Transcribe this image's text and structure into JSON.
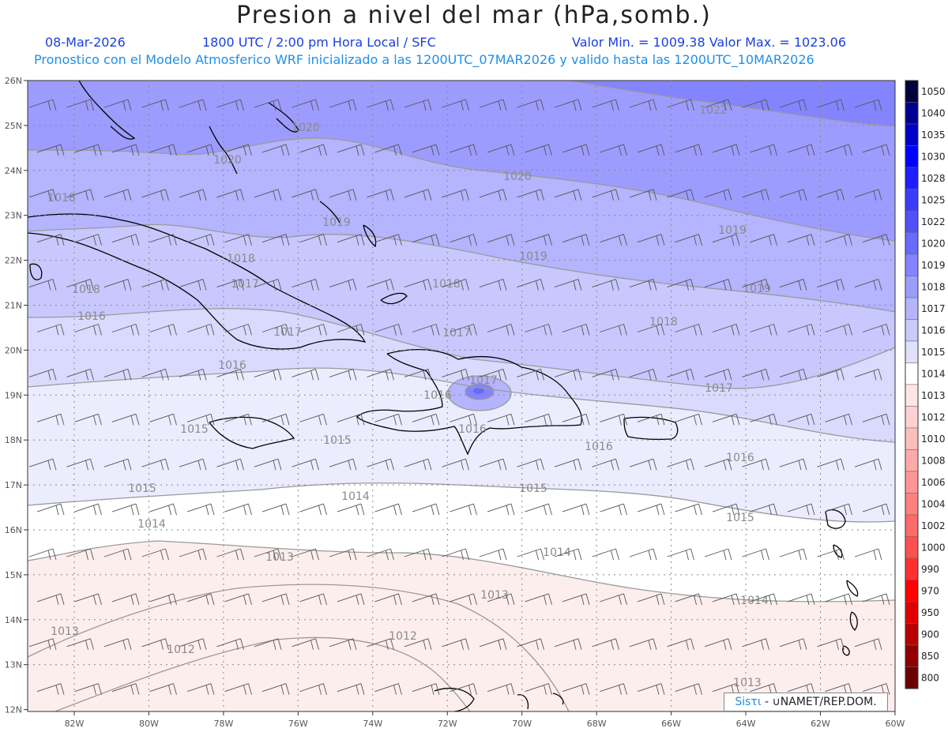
{
  "header": {
    "title": "Presion a nivel del mar (hPa,somb.)",
    "date": "08-Mar-2026",
    "time": "1800 UTC / 2:00 pm Hora Local / SFC",
    "min_max": "Valor Min. = 1009.38  Valor Max. = 1023.06",
    "model_info": "Pronostico con el Modelo Atmosferico WRF inicializado a las 1200UTC_07MAR2026 y valido hasta las  1200UTC_10MAR2026"
  },
  "map": {
    "lat_labels": [
      "26N",
      "25N",
      "24N",
      "23N",
      "22N",
      "21N",
      "20N",
      "19N",
      "18N",
      "17N",
      "16N",
      "15N",
      "14N",
      "13N",
      "12N"
    ],
    "lon_labels": [
      "82W",
      "80W",
      "78W",
      "76W",
      "74W",
      "72W",
      "70W",
      "68W",
      "66W",
      "64W",
      "62W",
      "60W"
    ],
    "isobar_labels": [
      "1022",
      "1020",
      "1020",
      "1020",
      "1019",
      "1019",
      "1019",
      "1019",
      "1018",
      "1018",
      "1018",
      "1018",
      "1018",
      "1017",
      "1017",
      "1017",
      "1017",
      "1017",
      "1016",
      "1016",
      "1016",
      "1016",
      "1016",
      "1016",
      "1015",
      "1015",
      "1015",
      "1015",
      "1015",
      "1014",
      "1014",
      "1014",
      "1014",
      "1013",
      "1013",
      "1013",
      "1013",
      "1012",
      "1012"
    ]
  },
  "colorbar": {
    "levels": [
      "1050",
      "1040",
      "1035",
      "1030",
      "1028",
      "1025",
      "1022",
      "1020",
      "1019",
      "1018",
      "1017",
      "1016",
      "1015",
      "1014",
      "1013",
      "1012",
      "1010",
      "1008",
      "1006",
      "1004",
      "1002",
      "1000",
      "990",
      "970",
      "950",
      "900",
      "850",
      "800"
    ],
    "colors": [
      "#00003c",
      "#000090",
      "#0000c8",
      "#0000ff",
      "#1e1eff",
      "#3c3cff",
      "#5050ff",
      "#6a6aff",
      "#8484ff",
      "#9c9cff",
      "#b4b4ff",
      "#cacaff",
      "#e0e0ff",
      "#ffffff",
      "#ffe6e6",
      "#ffd2d2",
      "#ffbebe",
      "#ffaaaa",
      "#ff9696",
      "#ff8080",
      "#ff6a6a",
      "#ff5050",
      "#ff3030",
      "#ff0000",
      "#e00000",
      "#bb0000",
      "#8f0000",
      "#6a0000"
    ]
  },
  "credit": {
    "sisti": "Sisτι",
    "org": " - ∪NAMET/REP.DOM."
  }
}
